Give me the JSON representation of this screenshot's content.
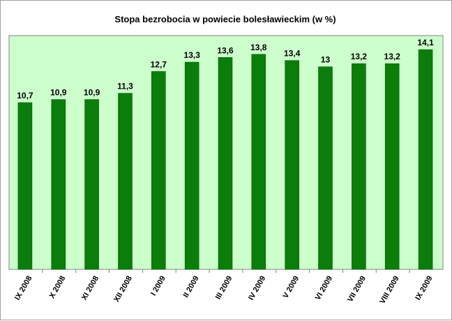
{
  "chart_data": {
    "type": "bar",
    "title": "Stopa bezrobocia w powiecie bolesławieckim (w %)",
    "categories": [
      "IX 2008",
      "X 2008",
      "XI 2008",
      "XII 2008",
      "I 2009",
      "II 2009",
      "III 2009",
      "IV 2009",
      "V 2009",
      "VI 2009",
      "VII 2009",
      "VIII 2009",
      "IX 2009"
    ],
    "values": [
      10.7,
      10.9,
      10.9,
      11.3,
      12.7,
      13.3,
      13.6,
      13.8,
      13.4,
      13.0,
      13.2,
      13.2,
      14.1
    ],
    "value_labels": [
      "10,7",
      "10,9",
      "10,9",
      "11,3",
      "12,7",
      "13,3",
      "13,6",
      "13,8",
      "13,4",
      "13",
      "13,2",
      "13,2",
      "14,1"
    ],
    "xlabel": "",
    "ylabel": "",
    "ylim": [
      0,
      15
    ],
    "grid": false,
    "legend": "none",
    "colors": {
      "bar": "#0a7d0a",
      "bar_edge": "#056005",
      "plot_background": "#ccffcc",
      "axis": "#808080"
    }
  }
}
